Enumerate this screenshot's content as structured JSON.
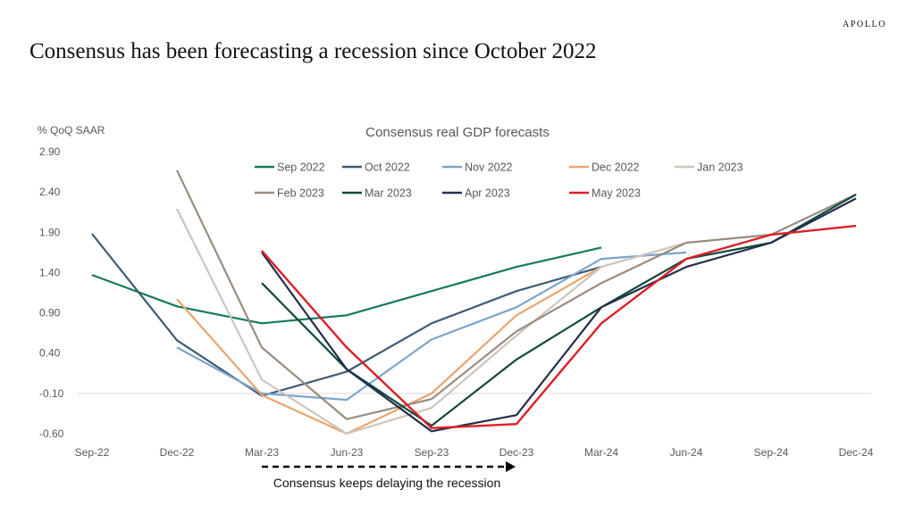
{
  "brand": "APOLLO",
  "title": "Consensus has been forecasting a recession since October 2022",
  "annotation": "Consensus keeps delaying the recession",
  "chart_data": {
    "type": "line",
    "title": "Consensus real GDP forecasts",
    "ylabel": "% QoQ SAAR",
    "xlabel": "",
    "ylim": [
      -0.6,
      2.9
    ],
    "y_ticks": [
      "2.90",
      "2.40",
      "1.90",
      "1.40",
      "0.90",
      "0.40",
      "-0.10",
      "-0.60"
    ],
    "categories": [
      "Sep-22",
      "Dec-22",
      "Mar-23",
      "Jun-23",
      "Sep-23",
      "Dec-23",
      "Mar-24",
      "Jun-24",
      "Sep-24",
      "Dec-24"
    ],
    "legend_position": "top",
    "series": [
      {
        "name": "Sep 2022",
        "color": "#16795f",
        "values": [
          1.37,
          0.98,
          0.77,
          0.87,
          1.17,
          1.47,
          1.71,
          null,
          null,
          null
        ]
      },
      {
        "name": "Oct 2022",
        "color": "#3f5b74",
        "values": [
          1.88,
          0.56,
          -0.13,
          0.17,
          0.77,
          1.17,
          1.47,
          null,
          null,
          null
        ]
      },
      {
        "name": "Nov 2022",
        "color": "#7aa5cb",
        "values": [
          null,
          0.47,
          -0.1,
          -0.18,
          0.57,
          0.97,
          1.57,
          1.65,
          null,
          null
        ]
      },
      {
        "name": "Dec 2022",
        "color": "#e9a46e",
        "values": [
          null,
          1.07,
          -0.12,
          -0.6,
          -0.1,
          0.87,
          1.47,
          null,
          null,
          null
        ]
      },
      {
        "name": "Jan 2023",
        "color": "#cbc5bc",
        "values": [
          null,
          2.19,
          0.07,
          -0.6,
          -0.28,
          0.62,
          1.47,
          1.77,
          null,
          null
        ]
      },
      {
        "name": "Feb 2023",
        "color": "#9a8b7e",
        "values": [
          null,
          2.67,
          0.47,
          -0.42,
          -0.17,
          0.67,
          1.27,
          1.77,
          1.87,
          2.37
        ]
      },
      {
        "name": "Mar 2023",
        "color": "#0e4a3d",
        "values": [
          null,
          null,
          1.27,
          0.2,
          -0.5,
          0.32,
          0.97,
          1.57,
          1.77,
          2.37
        ]
      },
      {
        "name": "Apr 2023",
        "color": "#23304a",
        "values": [
          null,
          null,
          1.65,
          0.2,
          -0.57,
          -0.37,
          0.97,
          1.47,
          1.77,
          2.32
        ]
      },
      {
        "name": "May 2023",
        "color": "#dd1f26",
        "values": [
          null,
          null,
          1.67,
          0.47,
          -0.53,
          -0.48,
          0.77,
          1.57,
          1.87,
          1.98
        ]
      }
    ]
  }
}
